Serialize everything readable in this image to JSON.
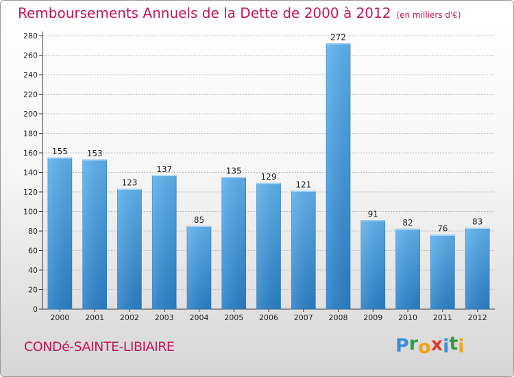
{
  "header": {
    "title": "Remboursements Annuels de la Dette de 2000 à 2012",
    "unit": "(en milliers d'€)"
  },
  "footer": {
    "town": "CONDé-SAINTE-LIBIAIRE",
    "brand_letters": [
      "P",
      "r",
      "o",
      "x",
      "i",
      "t",
      "i"
    ],
    "brand_colors": [
      "#3a8fd6",
      "#2f9e46",
      "#f2a21b",
      "#e23b2e",
      "#3a8fd6",
      "#2f9e46",
      "#f2a21b"
    ]
  },
  "colors": {
    "bar": "#4a9fe0",
    "bar_dark": "#2e86cf",
    "title": "#c2185b",
    "grid": "#bbbbbb"
  },
  "chart_data": {
    "type": "bar",
    "title": "Remboursements Annuels de la Dette de 2000 à 2012",
    "categories": [
      "2000",
      "2001",
      "2002",
      "2003",
      "2004",
      "2005",
      "2006",
      "2007",
      "2008",
      "2009",
      "2010",
      "2011",
      "2012"
    ],
    "values": [
      155,
      153,
      123,
      137,
      85,
      135,
      129,
      121,
      272,
      91,
      82,
      76,
      83
    ],
    "ylim": [
      0,
      280
    ],
    "yticks": [
      0,
      20,
      40,
      60,
      80,
      100,
      120,
      140,
      160,
      180,
      200,
      220,
      240,
      260,
      280
    ],
    "grid": true
  }
}
